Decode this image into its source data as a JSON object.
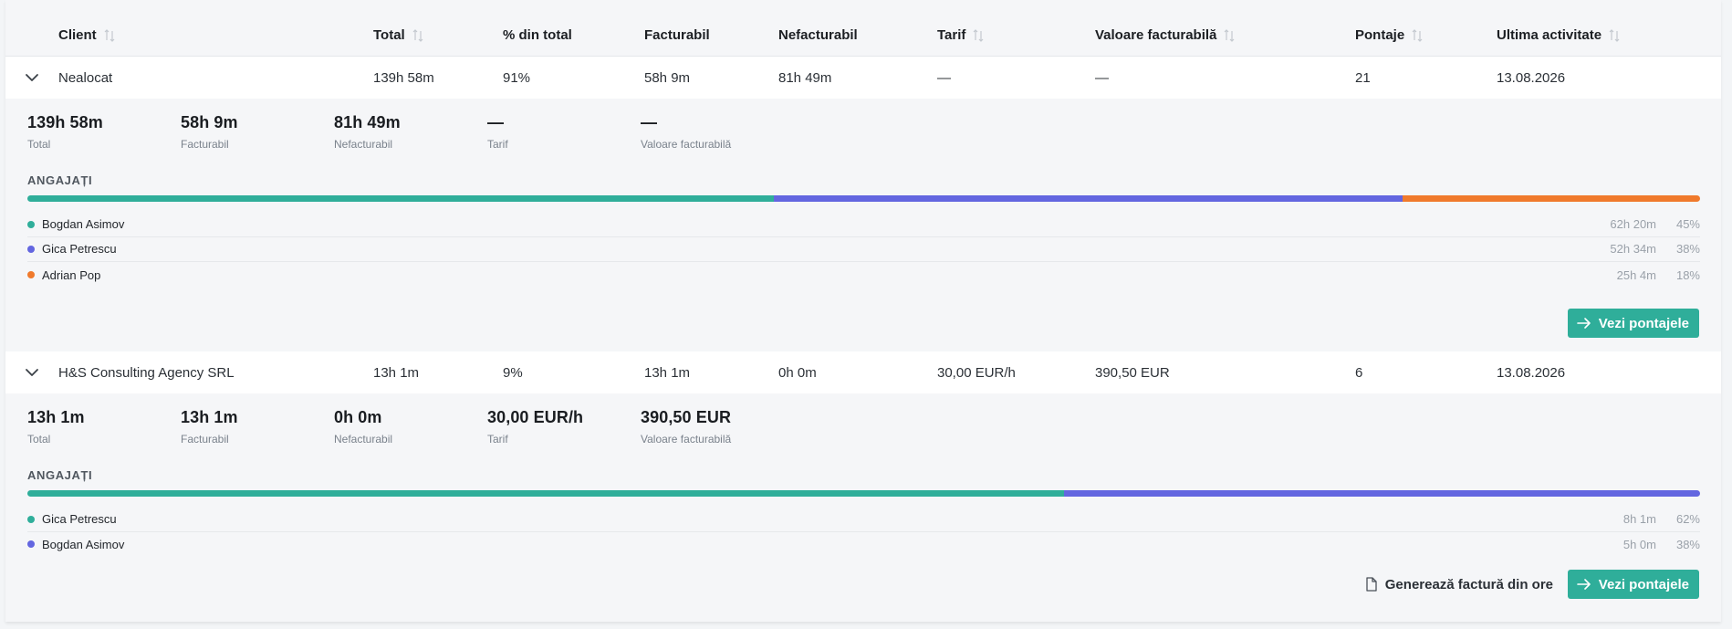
{
  "columns": {
    "client": "Client",
    "total": "Total",
    "pct": "% din total",
    "billable": "Facturabil",
    "nonbillable": "Nefacturabil",
    "rate": "Tarif",
    "billable_value": "Valoare facturabilă",
    "entries": "Pontaje",
    "last_activity": "Ultima activitate"
  },
  "groups": [
    {
      "client": "Nealocat",
      "total": "139h 58m",
      "pct": "91%",
      "billable": "58h 9m",
      "nonbillable": "81h 49m",
      "rate": "—",
      "billable_value": "—",
      "entries": "21",
      "last_activity": "13.08.2026",
      "kpis": {
        "total": {
          "value": "139h 58m",
          "label": "Total"
        },
        "billable": {
          "value": "58h 9m",
          "label": "Facturabil"
        },
        "nonbillable": {
          "value": "81h 49m",
          "label": "Nefacturabil"
        },
        "rate": {
          "value": "—",
          "label": "Tarif"
        },
        "billable_value": {
          "value": "—",
          "label": "Valoare facturabilă"
        }
      },
      "employees_title": "ANGAJAȚI",
      "employees": [
        {
          "name": "Bogdan Asimov",
          "time": "62h 20m",
          "pct": "45%",
          "share": 44.6,
          "color": "#2fae9a"
        },
        {
          "name": "Gica Petrescu",
          "time": "52h 34m",
          "pct": "38%",
          "share": 37.6,
          "color": "#6366e0"
        },
        {
          "name": "Adrian Pop",
          "time": "25h 4m",
          "pct": "18%",
          "share": 17.8,
          "color": "#f07a2c"
        }
      ],
      "actions": {
        "view_entries": "Vezi pontajele"
      }
    },
    {
      "client": "H&S Consulting Agency SRL",
      "total": "13h 1m",
      "pct": "9%",
      "billable": "13h 1m",
      "nonbillable": "0h 0m",
      "rate": "30,00 EUR/h",
      "billable_value": "390,50 EUR",
      "entries": "6",
      "last_activity": "13.08.2026",
      "kpis": {
        "total": {
          "value": "13h 1m",
          "label": "Total"
        },
        "billable": {
          "value": "13h 1m",
          "label": "Facturabil"
        },
        "nonbillable": {
          "value": "0h 0m",
          "label": "Nefacturabil"
        },
        "rate": {
          "value": "30,00 EUR/h",
          "label": "Tarif"
        },
        "billable_value": {
          "value": "390,50 EUR",
          "label": "Valoare facturabilă"
        }
      },
      "employees_title": "ANGAJAȚI",
      "employees": [
        {
          "name": "Gica Petrescu",
          "time": "8h 1m",
          "pct": "62%",
          "share": 62.0,
          "color": "#2fae9a"
        },
        {
          "name": "Bogdan Asimov",
          "time": "5h 0m",
          "pct": "38%",
          "share": 38.0,
          "color": "#6366e0"
        }
      ],
      "actions": {
        "generate_invoice": "Generează factură din ore",
        "view_entries": "Vezi pontajele"
      }
    }
  ],
  "icons": {
    "sort": "sort-arrows-icon",
    "chevron": "chevron-down-icon",
    "arrow": "arrow-right-icon",
    "document": "document-icon"
  },
  "colors": {
    "accent": "#2fae9a",
    "purple": "#6366e0",
    "orange": "#f07a2c"
  }
}
